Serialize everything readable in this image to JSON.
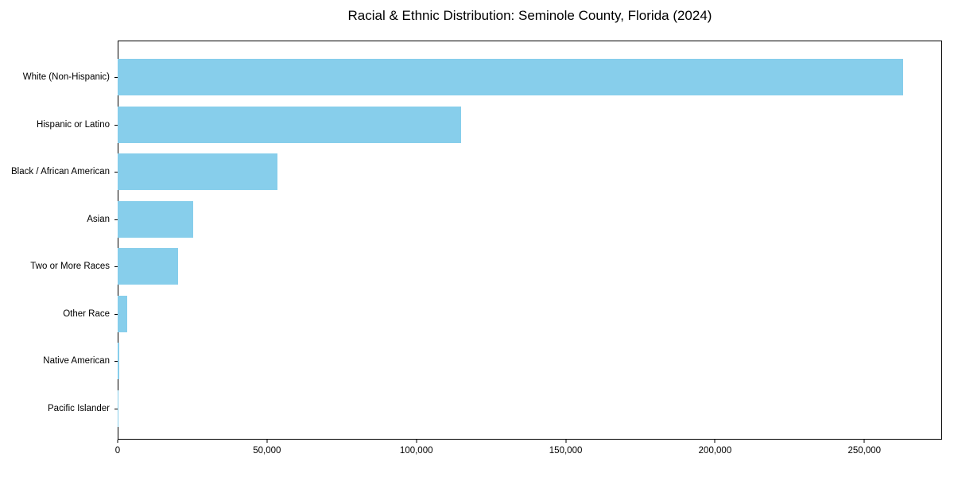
{
  "title": "Racial & Ethnic Distribution: Seminole County, Florida (2024)",
  "chart_data": {
    "type": "bar",
    "orientation": "horizontal",
    "title": "Racial & Ethnic Distribution: Seminole County, Florida (2024)",
    "categories": [
      "White (Non-Hispanic)",
      "Hispanic or Latino",
      "Black / African American",
      "Asian",
      "Two or More Races",
      "Other Race",
      "Native American",
      "Pacific Islander"
    ],
    "values": [
      263000,
      115000,
      53500,
      25400,
      20300,
      3200,
      500,
      150
    ],
    "xlabel": "",
    "ylabel": "",
    "xlim": [
      0,
      276000
    ],
    "xtick_values": [
      0,
      50000,
      100000,
      150000,
      200000,
      250000
    ],
    "xtick_labels": [
      "0",
      "50,000",
      "100,000",
      "150,000",
      "200,000",
      "250,000"
    ],
    "bar_color": "#87CEEB",
    "background_color": "#ffffff",
    "spine_color": "#000000",
    "grid": false,
    "legend": "none"
  }
}
